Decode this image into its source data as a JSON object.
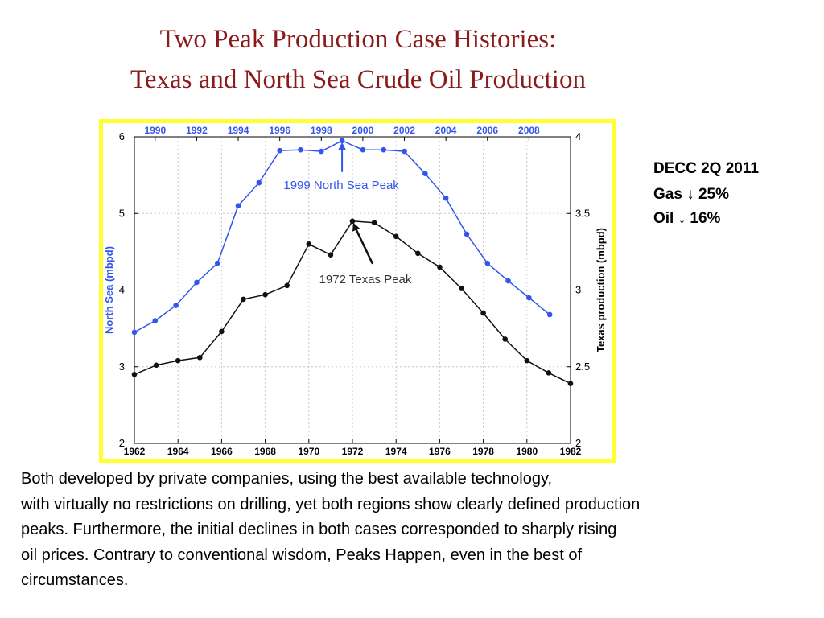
{
  "title": {
    "line1": "Two Peak Production Case Histories:",
    "line2": "Texas and North Sea Crude Oil Production"
  },
  "note": {
    "line1": "DECC 2Q 2011",
    "gas_label": "Gas",
    "gas_value": "25%",
    "oil_label": "Oil",
    "oil_value": "16%",
    "arrow_glyph": "↓"
  },
  "body_text": [
    "Both developed by private companies, using the best available technology,",
    "with virtually no restrictions on drilling, yet both regions show clearly defined production",
    "peaks. Furthermore, the initial declines in both cases corresponded to sharply rising",
    "oil prices. Contrary to conventional wisdom, Peaks Happen, even in the best of",
    "circumstances."
  ],
  "chart_data": {
    "type": "line",
    "grid": true,
    "colors": {
      "north_sea": "#3355ee",
      "texas": "#111111",
      "frame": "#ffff33"
    },
    "x_bottom": {
      "range": [
        1962,
        1982
      ],
      "ticks": [
        "1962",
        "1964",
        "1966",
        "1968",
        "1970",
        "1972",
        "1974",
        "1976",
        "1978",
        "1980",
        "1982"
      ]
    },
    "x_top": {
      "range": [
        1989,
        2010
      ],
      "ticks": [
        "1990",
        "1992",
        "1994",
        "1996",
        "1998",
        "2000",
        "2002",
        "2004",
        "2006",
        "2008"
      ]
    },
    "y_left": {
      "label": "North Sea (mbpd)",
      "range": [
        2,
        6
      ],
      "ticks": [
        "2",
        "3",
        "4",
        "5",
        "6"
      ]
    },
    "y_right": {
      "label": "Texas production (mbpd)",
      "range": [
        2,
        4
      ],
      "ticks": [
        "2",
        "2.5",
        "3",
        "3.5",
        "4"
      ]
    },
    "series": [
      {
        "key": "north_sea",
        "axis": "top-left",
        "x": [
          1989,
          1990,
          1991,
          1992,
          1993,
          1994,
          1995,
          1996,
          1997,
          1998,
          1999,
          2000,
          2001,
          2002,
          2003,
          2004,
          2005,
          2006,
          2007,
          2008,
          2009
        ],
        "y": [
          3.45,
          3.6,
          3.8,
          4.1,
          4.35,
          5.1,
          5.4,
          5.82,
          5.83,
          5.81,
          5.95,
          5.83,
          5.83,
          5.81,
          5.52,
          5.2,
          4.73,
          4.35,
          4.12,
          3.9,
          3.68
        ]
      },
      {
        "key": "texas",
        "axis": "bottom-right",
        "x": [
          1962,
          1963,
          1964,
          1965,
          1966,
          1967,
          1968,
          1969,
          1970,
          1971,
          1972,
          1973,
          1974,
          1975,
          1976,
          1977,
          1978,
          1979,
          1980,
          1981,
          1982
        ],
        "y": [
          2.45,
          2.51,
          2.54,
          2.56,
          2.73,
          2.94,
          2.97,
          3.03,
          3.3,
          3.23,
          3.45,
          3.44,
          3.35,
          3.24,
          3.15,
          3.01,
          2.85,
          2.68,
          2.54,
          2.46,
          2.39
        ]
      }
    ],
    "annotations": [
      {
        "id": "north_sea_peak",
        "text": "1999 North Sea Peak",
        "target_x": 1999,
        "target_y": 5.95,
        "series": "north_sea",
        "color": "#3355ee"
      },
      {
        "id": "texas_peak",
        "text": "1972 Texas Peak",
        "target_x": 1972,
        "target_y": 3.45,
        "series": "texas",
        "color": "#111111"
      }
    ]
  }
}
